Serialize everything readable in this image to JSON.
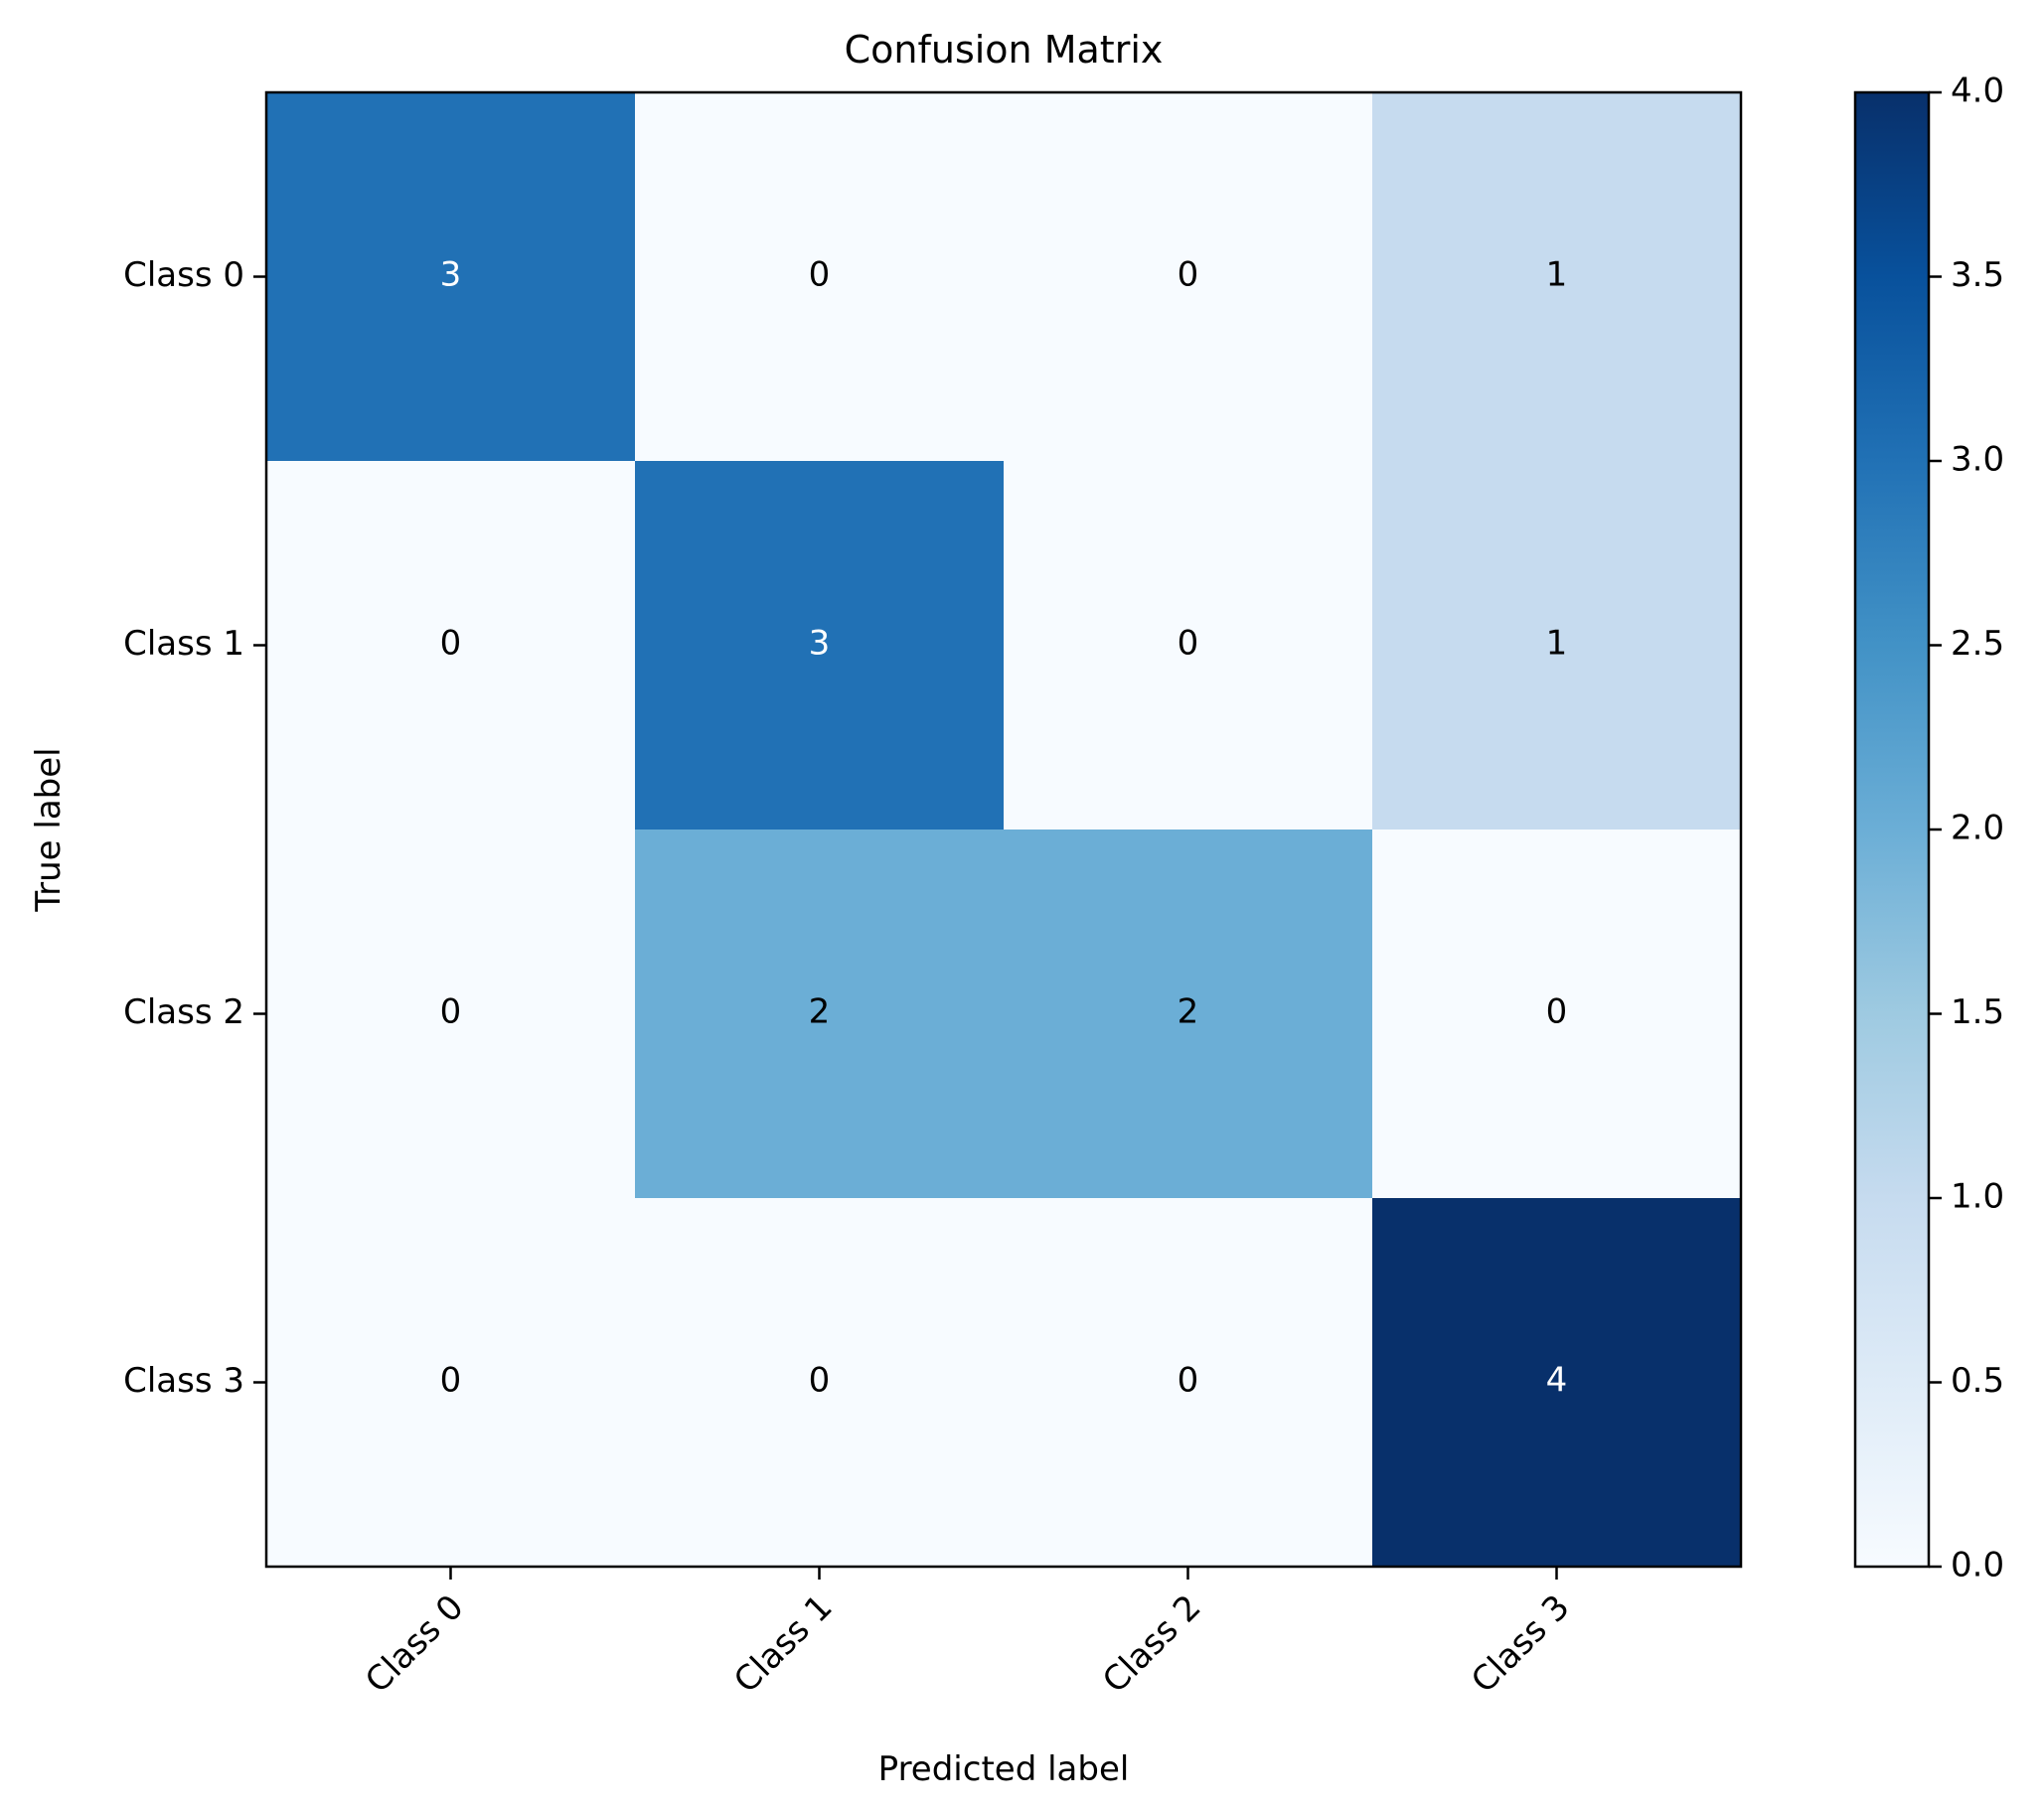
{
  "chart_data": {
    "type": "heatmap",
    "title": "Confusion Matrix",
    "xlabel": "Predicted label",
    "ylabel": "True label",
    "x_categories": [
      "Class 0",
      "Class 1",
      "Class 2",
      "Class 3"
    ],
    "y_categories": [
      "Class 0",
      "Class 1",
      "Class 2",
      "Class 3"
    ],
    "matrix": [
      [
        3,
        0,
        0,
        1
      ],
      [
        0,
        3,
        0,
        1
      ],
      [
        0,
        2,
        2,
        0
      ],
      [
        0,
        0,
        0,
        4
      ]
    ],
    "colormap": "Blues",
    "vmin": 0,
    "vmax": 4,
    "colorbar": {
      "ticks": [
        0.0,
        0.5,
        1.0,
        1.5,
        2.0,
        2.5,
        3.0,
        3.5,
        4.0
      ],
      "tick_labels": [
        "0.0",
        "0.5",
        "1.0",
        "1.5",
        "2.0",
        "2.5",
        "3.0",
        "3.5",
        "4.0"
      ]
    },
    "grid": false,
    "x_tick_rotation": "45 degrees",
    "colors": {
      "text_dark": "#000000",
      "text_light": "#ffffff"
    }
  }
}
